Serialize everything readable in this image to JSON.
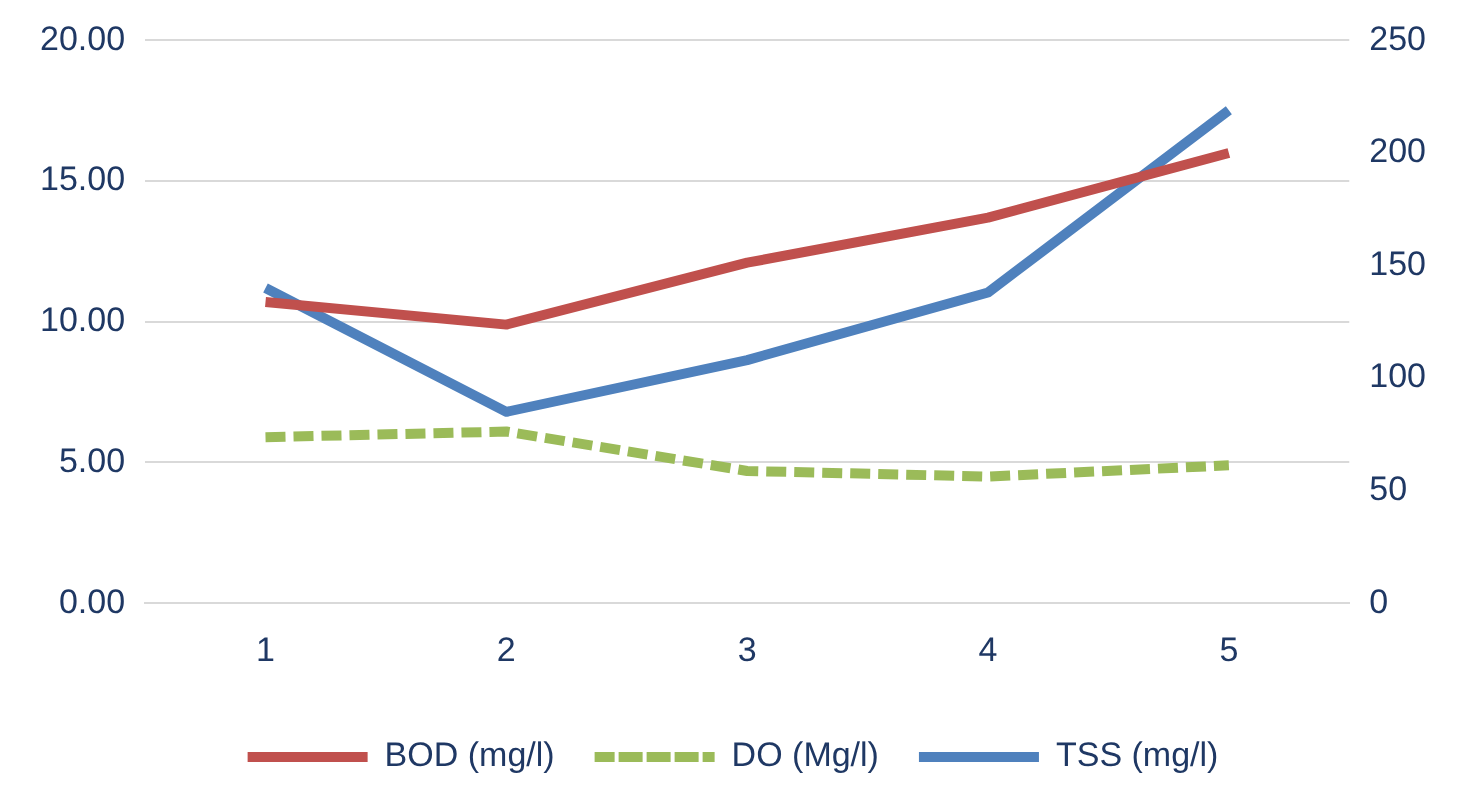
{
  "chart_data": {
    "type": "line",
    "categories": [
      "1",
      "2",
      "3",
      "4",
      "5"
    ],
    "series": [
      {
        "name": "BOD (mg/l)",
        "color": "#c0504d",
        "values": [
          10.7,
          9.9,
          12.1,
          13.7,
          16.0
        ]
      },
      {
        "name": "DO (Mg/l)",
        "color": "#9bbb59",
        "values": [
          5.9,
          6.1,
          4.7,
          4.5,
          4.9
        ],
        "line_style": "dashed"
      },
      {
        "name": "TSS (mg/l)",
        "color": "#4f81bd",
        "values": [
          140,
          85,
          108,
          138,
          219
        ],
        "axis": "y2"
      }
    ],
    "ylim": [
      0,
      20
    ],
    "yticks": [
      {
        "value": 0,
        "label": "0.00"
      },
      {
        "value": 5,
        "label": "5.00"
      },
      {
        "value": 10,
        "label": "10.00"
      },
      {
        "value": 15,
        "label": "15.00"
      },
      {
        "value": 20,
        "label": "20.00"
      }
    ],
    "y2lim": [
      0,
      250
    ],
    "y2ticks": [
      0,
      50,
      100,
      150,
      200,
      250
    ],
    "grid": "y",
    "legend": "bottom",
    "marker": "none",
    "line_style": "solid"
  }
}
